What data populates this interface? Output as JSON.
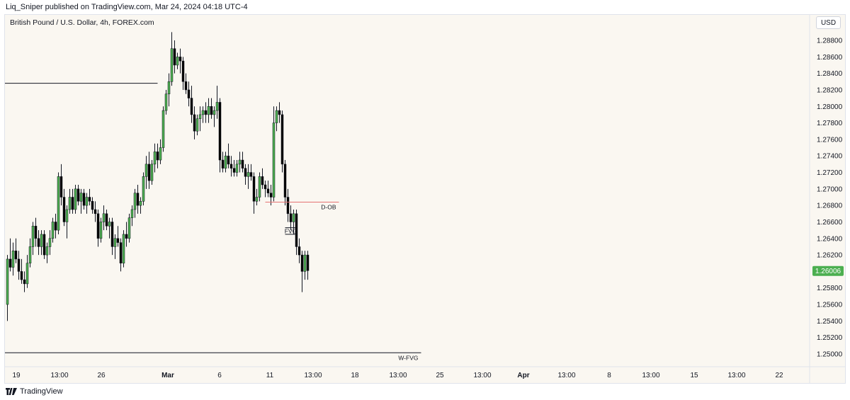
{
  "header": {
    "published_text": "Liq_Sniper published on TradingView.com, Mar 24, 2024 04:18 UTC-4",
    "symbol_title": "British Pound / U.S. Dollar, 4h, FOREX.com",
    "currency": "USD"
  },
  "footer": {
    "brand": "TradingView"
  },
  "colors": {
    "background": "#faf7f1",
    "bull_candle": "#4caf50",
    "bear_candle": "#000000",
    "price_tag": "#4caf50",
    "dob_line": "#e57373",
    "level_line": "#131722"
  },
  "chart_data": {
    "type": "candlestick",
    "title": "British Pound / U.S. Dollar, 4h, FOREX.com",
    "ylim": [
      1.249,
      1.2895
    ],
    "y_ticks": [
      "1.28800",
      "1.28600",
      "1.28400",
      "1.28200",
      "1.28000",
      "1.27800",
      "1.27600",
      "1.27400",
      "1.27200",
      "1.27000",
      "1.26800",
      "1.26600",
      "1.26400",
      "1.26200",
      "1.26000",
      "1.25800",
      "1.25600",
      "1.25400",
      "1.25200",
      "1.25000"
    ],
    "x_ticks": [
      "19",
      "13:00",
      "26",
      "Mar",
      "6",
      "11",
      "13:00",
      "18",
      "13:00",
      "25",
      "13:00",
      "Apr",
      "13:00",
      "8",
      "13:00",
      "15",
      "13:00",
      "22"
    ],
    "bold_x_ticks": [
      "Mar",
      "Apr"
    ],
    "grid": false,
    "last_price": "1.26006",
    "bars_per_day": 6,
    "candles": [
      [
        1.256,
        1.262,
        1.254,
        1.2615
      ],
      [
        1.2615,
        1.264,
        1.26,
        1.2605
      ],
      [
        1.2605,
        1.2635,
        1.2595,
        1.2625
      ],
      [
        1.2625,
        1.264,
        1.261,
        1.2615
      ],
      [
        1.2615,
        1.2625,
        1.259,
        1.26
      ],
      [
        1.26,
        1.2615,
        1.2585,
        1.259
      ],
      [
        1.259,
        1.26,
        1.2575,
        1.2585
      ],
      [
        1.2585,
        1.262,
        1.258,
        1.261
      ],
      [
        1.261,
        1.264,
        1.2605,
        1.263
      ],
      [
        1.263,
        1.266,
        1.262,
        1.2655
      ],
      [
        1.2655,
        1.2665,
        1.263,
        1.264
      ],
      [
        1.264,
        1.265,
        1.262,
        1.263
      ],
      [
        1.263,
        1.265,
        1.262,
        1.2645
      ],
      [
        1.2645,
        1.265,
        1.2615,
        1.262
      ],
      [
        1.262,
        1.2635,
        1.261,
        1.263
      ],
      [
        1.263,
        1.265,
        1.262,
        1.264
      ],
      [
        1.264,
        1.2665,
        1.2635,
        1.266
      ],
      [
        1.266,
        1.267,
        1.264,
        1.265
      ],
      [
        1.265,
        1.272,
        1.2645,
        1.2715
      ],
      [
        1.2715,
        1.273,
        1.268,
        1.269
      ],
      [
        1.269,
        1.27,
        1.2655,
        1.266
      ],
      [
        1.266,
        1.268,
        1.264,
        1.2675
      ],
      [
        1.2675,
        1.27,
        1.267,
        1.269
      ],
      [
        1.269,
        1.27,
        1.267,
        1.2675
      ],
      [
        1.2675,
        1.2705,
        1.267,
        1.27
      ],
      [
        1.27,
        1.2705,
        1.268,
        1.2685
      ],
      [
        1.2685,
        1.27,
        1.267,
        1.2695
      ],
      [
        1.2695,
        1.27,
        1.2675,
        1.268
      ],
      [
        1.268,
        1.2695,
        1.267,
        1.269
      ],
      [
        1.269,
        1.27,
        1.268,
        1.2685
      ],
      [
        1.2685,
        1.269,
        1.267,
        1.2675
      ],
      [
        1.2675,
        1.2685,
        1.266,
        1.267
      ],
      [
        1.267,
        1.2675,
        1.263,
        1.264
      ],
      [
        1.264,
        1.2665,
        1.2635,
        1.266
      ],
      [
        1.266,
        1.268,
        1.265,
        1.267
      ],
      [
        1.267,
        1.2675,
        1.265,
        1.2655
      ],
      [
        1.2655,
        1.2665,
        1.264,
        1.266
      ],
      [
        1.266,
        1.2665,
        1.262,
        1.263
      ],
      [
        1.263,
        1.2645,
        1.2615,
        1.264
      ],
      [
        1.264,
        1.2655,
        1.263,
        1.2635
      ],
      [
        1.2635,
        1.264,
        1.26,
        1.261
      ],
      [
        1.261,
        1.265,
        1.2605,
        1.2645
      ],
      [
        1.2645,
        1.266,
        1.263,
        1.264
      ],
      [
        1.264,
        1.267,
        1.2635,
        1.2665
      ],
      [
        1.2665,
        1.268,
        1.2655,
        1.2675
      ],
      [
        1.2675,
        1.27,
        1.2665,
        1.2695
      ],
      [
        1.2695,
        1.2705,
        1.267,
        1.268
      ],
      [
        1.268,
        1.269,
        1.267,
        1.2685
      ],
      [
        1.2685,
        1.272,
        1.268,
        1.2715
      ],
      [
        1.2715,
        1.274,
        1.27,
        1.273
      ],
      [
        1.273,
        1.2745,
        1.27,
        1.271
      ],
      [
        1.271,
        1.2735,
        1.2705,
        1.273
      ],
      [
        1.273,
        1.2755,
        1.272,
        1.2745
      ],
      [
        1.2745,
        1.2755,
        1.2725,
        1.2735
      ],
      [
        1.2735,
        1.276,
        1.273,
        1.275
      ],
      [
        1.275,
        1.28,
        1.2745,
        1.2795
      ],
      [
        1.2795,
        1.282,
        1.279,
        1.2815
      ],
      [
        1.2815,
        1.284,
        1.28,
        1.283
      ],
      [
        1.283,
        1.289,
        1.2825,
        1.287
      ],
      [
        1.287,
        1.288,
        1.284,
        1.285
      ],
      [
        1.285,
        1.2865,
        1.2845,
        1.286
      ],
      [
        1.286,
        1.287,
        1.284,
        1.2855
      ],
      [
        1.2855,
        1.286,
        1.282,
        1.283
      ],
      [
        1.283,
        1.284,
        1.2815,
        1.282
      ],
      [
        1.282,
        1.283,
        1.28,
        1.281
      ],
      [
        1.281,
        1.2825,
        1.278,
        1.279
      ],
      [
        1.279,
        1.28,
        1.276,
        1.277
      ],
      [
        1.277,
        1.279,
        1.2765,
        1.2785
      ],
      [
        1.2785,
        1.28,
        1.277,
        1.279
      ],
      [
        1.279,
        1.28,
        1.278,
        1.2795
      ],
      [
        1.2795,
        1.2805,
        1.278,
        1.279
      ],
      [
        1.279,
        1.281,
        1.278,
        1.28
      ],
      [
        1.28,
        1.281,
        1.2785,
        1.279
      ],
      [
        1.279,
        1.28,
        1.2775,
        1.2795
      ],
      [
        1.2795,
        1.2825,
        1.2785,
        1.2805
      ],
      [
        1.2805,
        1.281,
        1.272,
        1.2735
      ],
      [
        1.2735,
        1.2745,
        1.272,
        1.2725
      ],
      [
        1.2725,
        1.2745,
        1.272,
        1.274
      ],
      [
        1.274,
        1.2755,
        1.2725,
        1.273
      ],
      [
        1.273,
        1.274,
        1.2715,
        1.2725
      ],
      [
        1.2725,
        1.2735,
        1.2715,
        1.272
      ],
      [
        1.272,
        1.2735,
        1.2715,
        1.273
      ],
      [
        1.273,
        1.2745,
        1.272,
        1.2735
      ],
      [
        1.2735,
        1.2745,
        1.272,
        1.2725
      ],
      [
        1.2725,
        1.273,
        1.2705,
        1.2715
      ],
      [
        1.2715,
        1.273,
        1.27,
        1.272
      ],
      [
        1.272,
        1.273,
        1.271,
        1.2715
      ],
      [
        1.2715,
        1.272,
        1.267,
        1.2685
      ],
      [
        1.2685,
        1.27,
        1.268,
        1.269
      ],
      [
        1.269,
        1.272,
        1.2685,
        1.2715
      ],
      [
        1.2715,
        1.2725,
        1.27,
        1.2705
      ],
      [
        1.2705,
        1.271,
        1.269,
        1.27
      ],
      [
        1.27,
        1.271,
        1.269,
        1.2695
      ],
      [
        1.2695,
        1.2705,
        1.268,
        1.269
      ],
      [
        1.269,
        1.28,
        1.2685,
        1.278
      ],
      [
        1.278,
        1.28,
        1.277,
        1.2795
      ],
      [
        1.2795,
        1.2805,
        1.278,
        1.279
      ],
      [
        1.279,
        1.2795,
        1.272,
        1.273
      ],
      [
        1.273,
        1.2735,
        1.268,
        1.269
      ],
      [
        1.269,
        1.27,
        1.266,
        1.267
      ],
      [
        1.267,
        1.268,
        1.265,
        1.266
      ],
      [
        1.266,
        1.2675,
        1.2645,
        1.267
      ],
      [
        1.267,
        1.2675,
        1.262,
        1.263
      ],
      [
        1.263,
        1.264,
        1.261,
        1.262
      ],
      [
        1.262,
        1.2625,
        1.2575,
        1.26
      ],
      [
        1.26,
        1.2625,
        1.259,
        1.262
      ],
      [
        1.262,
        1.2625,
        1.259,
        1.2601
      ]
    ],
    "annotations": [
      {
        "type": "hline",
        "label": "",
        "price": 1.2828,
        "from_bar": -2,
        "to_bar": 53
      },
      {
        "type": "hline",
        "label": "D-OB",
        "price": 1.2684,
        "from_bar": 91,
        "to_bar": 117
      },
      {
        "type": "rect",
        "label": "FVG",
        "price_top": 1.2653,
        "price_bottom": 1.2645,
        "from_bar": 98,
        "to_bar": 102
      },
      {
        "type": "hline",
        "label": "W-FVG",
        "price": 1.25015,
        "from_bar": -2,
        "to_bar": 146
      }
    ]
  }
}
